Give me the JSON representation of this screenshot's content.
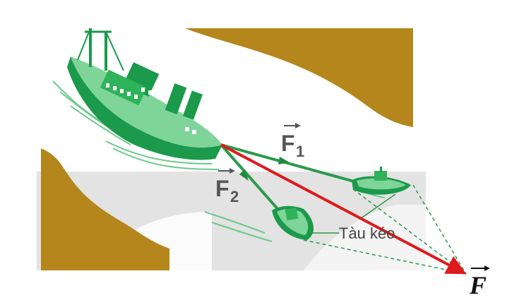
{
  "labels": {
    "f1": "F",
    "f1_sub": "1",
    "f2": "F",
    "f2_sub": "2",
    "resultant": "F",
    "tugboats": "Tàu kéo"
  },
  "colors": {
    "ship": "#1a9a4a",
    "ship_light": "#7fd49a",
    "bank": "#b5861c",
    "water_band": "#e2e2e2",
    "resultant_vector": "#e0191c",
    "rope": "#2a9a4a",
    "guide_line": "#2a9a4a"
  }
}
